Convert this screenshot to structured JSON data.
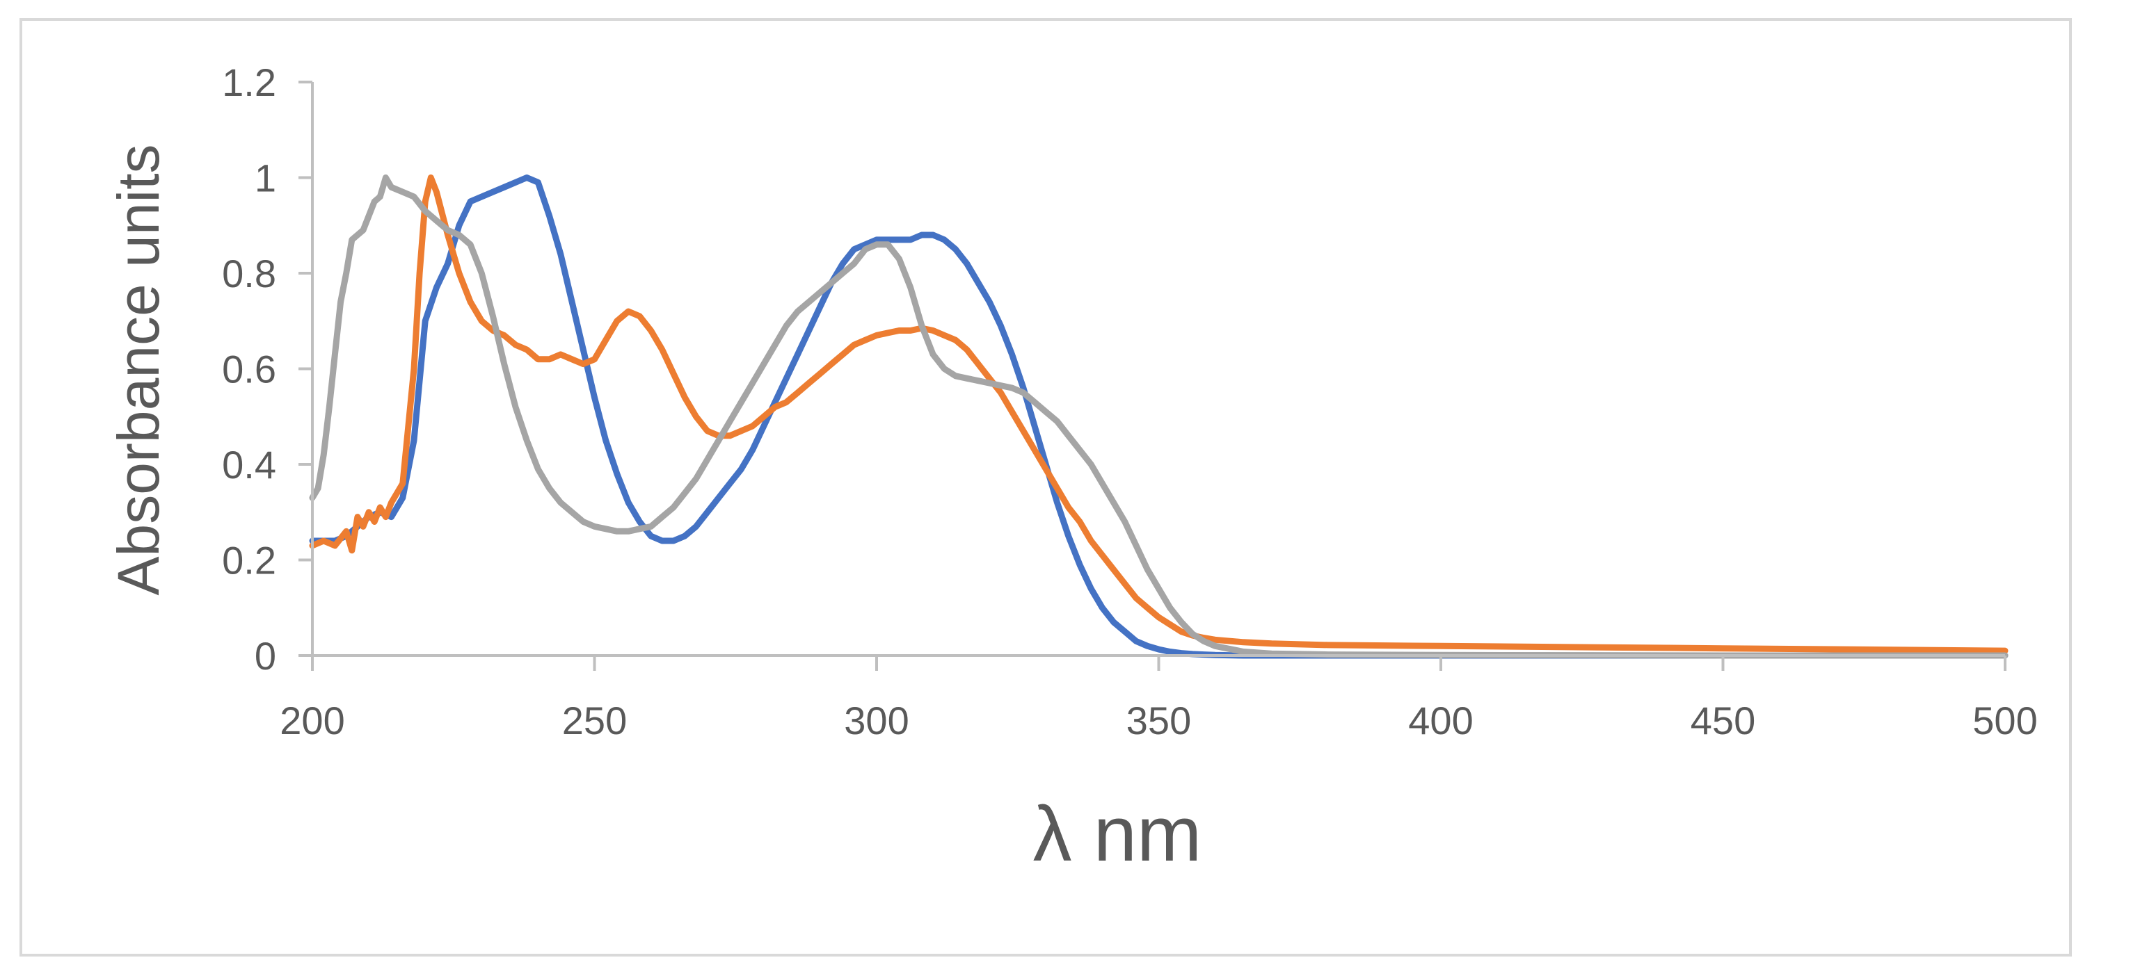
{
  "chart_data": {
    "type": "line",
    "title": "",
    "xlabel": "λ nm",
    "ylabel": "Absorbance units",
    "xlim": [
      200,
      500
    ],
    "ylim": [
      0,
      1.2
    ],
    "x_ticks": [
      200,
      250,
      300,
      350,
      400,
      450,
      500
    ],
    "x_tick_labels": [
      "200",
      "250",
      "300",
      "350",
      "400",
      "450",
      "500"
    ],
    "y_ticks": [
      0,
      0.2,
      0.4,
      0.6,
      0.8,
      1.0,
      1.2
    ],
    "y_tick_labels": [
      "0",
      "0.2",
      "0.4",
      "0.6",
      "0.8",
      "1",
      "1.2"
    ],
    "grid": false,
    "legend": "none",
    "series": [
      {
        "name": "blue",
        "color": "#4472c4",
        "x": [
          200,
          202,
          204,
          206,
          208,
          210,
          212,
          214,
          216,
          218,
          220,
          222,
          224,
          226,
          228,
          230,
          232,
          234,
          236,
          238,
          240,
          242,
          244,
          246,
          248,
          250,
          252,
          254,
          256,
          258,
          260,
          262,
          264,
          266,
          268,
          270,
          272,
          274,
          276,
          278,
          280,
          282,
          284,
          286,
          288,
          290,
          292,
          294,
          296,
          298,
          300,
          302,
          304,
          306,
          308,
          310,
          312,
          314,
          316,
          318,
          320,
          322,
          324,
          326,
          328,
          330,
          332,
          334,
          336,
          338,
          340,
          342,
          344,
          346,
          348,
          350,
          352,
          354,
          356,
          358,
          360,
          365,
          370,
          380,
          400,
          450,
          500
        ],
        "y": [
          0.24,
          0.24,
          0.24,
          0.25,
          0.27,
          0.29,
          0.3,
          0.29,
          0.33,
          0.45,
          0.7,
          0.77,
          0.82,
          0.9,
          0.95,
          0.96,
          0.97,
          0.98,
          0.99,
          1.0,
          0.99,
          0.92,
          0.84,
          0.74,
          0.64,
          0.54,
          0.45,
          0.38,
          0.32,
          0.28,
          0.25,
          0.24,
          0.24,
          0.25,
          0.27,
          0.3,
          0.33,
          0.36,
          0.39,
          0.43,
          0.48,
          0.53,
          0.58,
          0.63,
          0.68,
          0.73,
          0.78,
          0.82,
          0.85,
          0.86,
          0.87,
          0.87,
          0.87,
          0.87,
          0.88,
          0.88,
          0.87,
          0.85,
          0.82,
          0.78,
          0.74,
          0.69,
          0.63,
          0.56,
          0.48,
          0.4,
          0.32,
          0.25,
          0.19,
          0.14,
          0.1,
          0.07,
          0.05,
          0.03,
          0.02,
          0.013,
          0.008,
          0.005,
          0.003,
          0.002,
          0.001,
          0.0,
          0.0,
          0.0,
          0.0,
          0.0,
          0.0
        ]
      },
      {
        "name": "orange",
        "color": "#ed7d31",
        "x": [
          200,
          202,
          204,
          206,
          207,
          208,
          209,
          210,
          211,
          212,
          213,
          214,
          216,
          218,
          219,
          220,
          221,
          222,
          224,
          226,
          228,
          230,
          232,
          234,
          236,
          238,
          240,
          242,
          244,
          246,
          248,
          250,
          252,
          254,
          256,
          258,
          260,
          262,
          264,
          266,
          268,
          270,
          272,
          274,
          276,
          278,
          280,
          282,
          284,
          286,
          288,
          290,
          292,
          294,
          296,
          298,
          300,
          302,
          304,
          306,
          308,
          310,
          312,
          314,
          316,
          318,
          320,
          322,
          324,
          326,
          328,
          330,
          332,
          334,
          336,
          338,
          340,
          342,
          344,
          346,
          348,
          350,
          352,
          354,
          356,
          358,
          360,
          365,
          370,
          380,
          400,
          450,
          500
        ],
        "y": [
          0.23,
          0.24,
          0.23,
          0.26,
          0.22,
          0.29,
          0.27,
          0.3,
          0.28,
          0.31,
          0.29,
          0.32,
          0.36,
          0.6,
          0.8,
          0.95,
          1.0,
          0.97,
          0.88,
          0.8,
          0.74,
          0.7,
          0.68,
          0.67,
          0.65,
          0.64,
          0.62,
          0.62,
          0.63,
          0.62,
          0.61,
          0.62,
          0.66,
          0.7,
          0.72,
          0.71,
          0.68,
          0.64,
          0.59,
          0.54,
          0.5,
          0.47,
          0.46,
          0.46,
          0.47,
          0.48,
          0.5,
          0.52,
          0.53,
          0.55,
          0.57,
          0.59,
          0.61,
          0.63,
          0.65,
          0.66,
          0.67,
          0.675,
          0.68,
          0.68,
          0.685,
          0.68,
          0.67,
          0.66,
          0.64,
          0.61,
          0.58,
          0.55,
          0.51,
          0.47,
          0.43,
          0.39,
          0.35,
          0.31,
          0.28,
          0.24,
          0.21,
          0.18,
          0.15,
          0.12,
          0.1,
          0.08,
          0.065,
          0.05,
          0.042,
          0.037,
          0.033,
          0.028,
          0.025,
          0.022,
          0.02,
          0.015,
          0.01
        ]
      },
      {
        "name": "gray",
        "color": "#a5a5a5",
        "x": [
          200,
          201,
          202,
          203,
          204,
          205,
          206,
          207,
          208,
          209,
          210,
          211,
          212,
          213,
          214,
          216,
          218,
          220,
          222,
          224,
          226,
          228,
          230,
          232,
          234,
          236,
          238,
          240,
          242,
          244,
          246,
          248,
          250,
          252,
          254,
          256,
          258,
          260,
          262,
          264,
          266,
          268,
          270,
          272,
          274,
          276,
          278,
          280,
          282,
          284,
          286,
          288,
          290,
          292,
          294,
          296,
          298,
          300,
          302,
          304,
          306,
          308,
          310,
          312,
          314,
          316,
          318,
          320,
          322,
          324,
          326,
          328,
          330,
          332,
          334,
          336,
          338,
          340,
          342,
          344,
          346,
          348,
          350,
          352,
          354,
          356,
          358,
          360,
          365,
          370,
          380,
          400,
          450,
          500
        ],
        "y": [
          0.33,
          0.35,
          0.42,
          0.52,
          0.63,
          0.74,
          0.8,
          0.87,
          0.88,
          0.89,
          0.92,
          0.95,
          0.96,
          1.0,
          0.98,
          0.97,
          0.96,
          0.93,
          0.91,
          0.89,
          0.88,
          0.86,
          0.8,
          0.71,
          0.61,
          0.52,
          0.45,
          0.39,
          0.35,
          0.32,
          0.3,
          0.28,
          0.27,
          0.265,
          0.26,
          0.26,
          0.265,
          0.27,
          0.29,
          0.31,
          0.34,
          0.37,
          0.41,
          0.45,
          0.49,
          0.53,
          0.57,
          0.61,
          0.65,
          0.69,
          0.72,
          0.74,
          0.76,
          0.78,
          0.8,
          0.82,
          0.85,
          0.86,
          0.86,
          0.83,
          0.77,
          0.69,
          0.63,
          0.6,
          0.585,
          0.58,
          0.575,
          0.57,
          0.565,
          0.56,
          0.55,
          0.53,
          0.51,
          0.49,
          0.46,
          0.43,
          0.4,
          0.36,
          0.32,
          0.28,
          0.23,
          0.18,
          0.14,
          0.1,
          0.07,
          0.045,
          0.03,
          0.02,
          0.008,
          0.004,
          0.002,
          0.001,
          0.0,
          0.0
        ]
      }
    ]
  }
}
